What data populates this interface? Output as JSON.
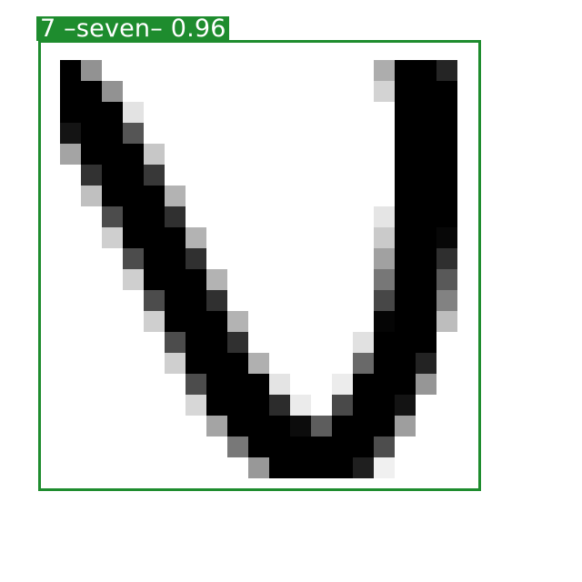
{
  "image": {
    "subject": "handwritten-digit",
    "background_color": "#ffffff",
    "ink_color": "#000000"
  },
  "detection": {
    "label": "7 –seven– 0.96",
    "color": "#1e8c2e"
  }
}
